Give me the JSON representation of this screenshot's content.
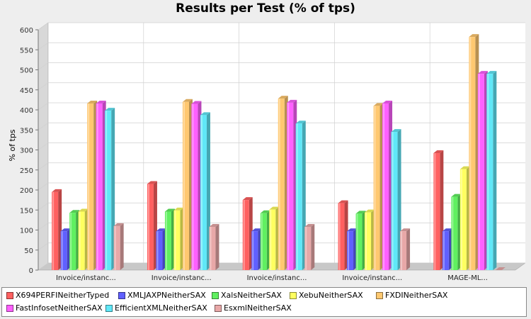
{
  "chart_data": {
    "type": "bar",
    "title": "Results per Test (% of tps)",
    "ylabel": "% of tps",
    "xlabel": "",
    "ylim": [
      0,
      600
    ],
    "yticks": [
      0,
      50,
      100,
      150,
      200,
      250,
      300,
      350,
      400,
      450,
      500,
      550,
      600
    ],
    "grid": true,
    "legend_position": "bottom",
    "categories": [
      "Invoice/instanc...",
      "Invoice/instanc...",
      "Invoice/instanc...",
      "Invoice/instanc...",
      "MAGE-ML..."
    ],
    "series": [
      {
        "name": "X694PERFINeitherTyped",
        "color": "#ff6060",
        "values": [
          195,
          215,
          175,
          167,
          292
        ]
      },
      {
        "name": "XMLJAXPNeitherSAX",
        "color": "#6060ff",
        "values": [
          97,
          97,
          97,
          97,
          97
        ]
      },
      {
        "name": "XalsNeitherSAX",
        "color": "#60f060",
        "values": [
          143,
          146,
          142,
          141,
          183
        ]
      },
      {
        "name": "XebuNeitherSAX",
        "color": "#ffff60",
        "values": [
          146,
          149,
          151,
          144,
          252
        ]
      },
      {
        "name": "FXDINeitherSAX",
        "color": "#ffc870",
        "values": [
          416,
          420,
          428,
          410,
          582
        ]
      },
      {
        "name": "FastInfosetNeitherSAX",
        "color": "#ff60ff",
        "values": [
          416,
          415,
          418,
          416,
          490
        ]
      },
      {
        "name": "EfficientXMLNeitherSAX",
        "color": "#60e8f8",
        "values": [
          398,
          387,
          366,
          345,
          490
        ]
      },
      {
        "name": "EsxmlNeitherSAX",
        "color": "#e8a8a8",
        "values": [
          110,
          108,
          108,
          97,
          0
        ]
      }
    ]
  }
}
